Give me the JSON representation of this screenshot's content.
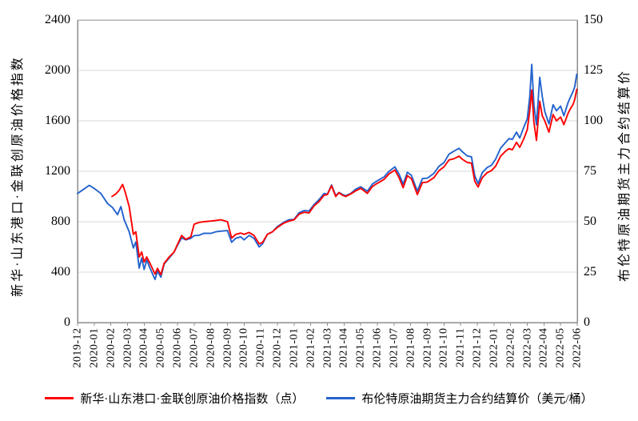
{
  "chart_data": {
    "type": "line",
    "title": "",
    "grid": true,
    "legend_position": "bottom",
    "x_axis": {
      "tick_labels": [
        "2019-12",
        "2020-01",
        "2020-02",
        "2020-03",
        "2020-04",
        "2020-05",
        "2020-06",
        "2020-07",
        "2020-08",
        "2020-09",
        "2020-10",
        "2020-11",
        "2020-12",
        "2021-01",
        "2021-02",
        "2021-03",
        "2021-04",
        "2021-05",
        "2021-06",
        "2021-07",
        "2021-08",
        "2021-09",
        "2021-10",
        "2021-11",
        "2021-12",
        "2022-01",
        "2022-02",
        "2022-03",
        "2022-04",
        "2022-05",
        "2022-06"
      ],
      "note": "series point x values are fractional month offsets: 0 = 2019-12 tick, 30 = 2022-06 tick"
    },
    "left_axis": {
      "title": "新华·山东港口·金联创原油价格指数",
      "ticks": [
        0,
        400,
        800,
        1200,
        1600,
        2000,
        2400
      ],
      "range": [
        0,
        2400
      ]
    },
    "right_axis": {
      "title": "布伦特原油期货主力合约结算价",
      "ticks": [
        0,
        25,
        50,
        75,
        100,
        125,
        150
      ],
      "range": [
        0,
        150
      ]
    },
    "colors": {
      "index_red": "#fe0000",
      "brent_blue": "#2363ce",
      "gridline": "#d9d9d9",
      "axis_line": "#8c8c8c"
    },
    "series": [
      {
        "name": "新华·山东港口·金联创原油价格指数（点）",
        "axis": "left",
        "unit": "点",
        "color": "#fe0000",
        "points": [
          [
            2.07,
            1000
          ],
          [
            2.3,
            1020
          ],
          [
            2.5,
            1050
          ],
          [
            2.7,
            1095
          ],
          [
            2.85,
            1040
          ],
          [
            3.1,
            920
          ],
          [
            3.35,
            700
          ],
          [
            3.5,
            720
          ],
          [
            3.7,
            520
          ],
          [
            3.85,
            560
          ],
          [
            4.0,
            480
          ],
          [
            4.15,
            520
          ],
          [
            4.35,
            470
          ],
          [
            4.65,
            385
          ],
          [
            4.8,
            430
          ],
          [
            5.0,
            380
          ],
          [
            5.2,
            470
          ],
          [
            5.5,
            520
          ],
          [
            5.8,
            560
          ],
          [
            6.0,
            620
          ],
          [
            6.25,
            690
          ],
          [
            6.5,
            660
          ],
          [
            6.8,
            680
          ],
          [
            7.0,
            780
          ],
          [
            7.3,
            795
          ],
          [
            7.6,
            800
          ],
          [
            8.0,
            805
          ],
          [
            8.3,
            810
          ],
          [
            8.6,
            815
          ],
          [
            9.0,
            800
          ],
          [
            9.25,
            670
          ],
          [
            9.5,
            700
          ],
          [
            9.8,
            710
          ],
          [
            10.0,
            700
          ],
          [
            10.3,
            715
          ],
          [
            10.6,
            690
          ],
          [
            10.9,
            625
          ],
          [
            11.1,
            635
          ],
          [
            11.4,
            700
          ],
          [
            11.7,
            720
          ],
          [
            12.0,
            755
          ],
          [
            12.4,
            790
          ],
          [
            12.7,
            805
          ],
          [
            13.0,
            815
          ],
          [
            13.3,
            860
          ],
          [
            13.6,
            875
          ],
          [
            13.9,
            870
          ],
          [
            14.2,
            925
          ],
          [
            14.5,
            960
          ],
          [
            14.8,
            1010
          ],
          [
            15.0,
            1015
          ],
          [
            15.25,
            1085
          ],
          [
            15.5,
            1000
          ],
          [
            15.7,
            1030
          ],
          [
            15.9,
            1010
          ],
          [
            16.1,
            1000
          ],
          [
            16.4,
            1020
          ],
          [
            16.7,
            1045
          ],
          [
            17.0,
            1065
          ],
          [
            17.4,
            1025
          ],
          [
            17.7,
            1080
          ],
          [
            18.0,
            1105
          ],
          [
            18.4,
            1135
          ],
          [
            18.7,
            1180
          ],
          [
            19.05,
            1210
          ],
          [
            19.3,
            1150
          ],
          [
            19.55,
            1070
          ],
          [
            19.8,
            1165
          ],
          [
            20.05,
            1140
          ],
          [
            20.4,
            1015
          ],
          [
            20.7,
            1110
          ],
          [
            21.0,
            1115
          ],
          [
            21.4,
            1150
          ],
          [
            21.7,
            1205
          ],
          [
            22.0,
            1235
          ],
          [
            22.3,
            1290
          ],
          [
            22.6,
            1300
          ],
          [
            22.9,
            1320
          ],
          [
            23.1,
            1295
          ],
          [
            23.4,
            1270
          ],
          [
            23.65,
            1265
          ],
          [
            23.85,
            1120
          ],
          [
            24.05,
            1075
          ],
          [
            24.3,
            1150
          ],
          [
            24.6,
            1190
          ],
          [
            24.85,
            1205
          ],
          [
            25.1,
            1240
          ],
          [
            25.4,
            1320
          ],
          [
            25.7,
            1360
          ],
          [
            25.9,
            1380
          ],
          [
            26.1,
            1370
          ],
          [
            26.35,
            1430
          ],
          [
            26.55,
            1390
          ],
          [
            26.8,
            1460
          ],
          [
            27.0,
            1530
          ],
          [
            27.15,
            1680
          ],
          [
            27.27,
            1845
          ],
          [
            27.4,
            1590
          ],
          [
            27.55,
            1445
          ],
          [
            27.75,
            1755
          ],
          [
            27.9,
            1640
          ],
          [
            28.05,
            1600
          ],
          [
            28.3,
            1510
          ],
          [
            28.55,
            1650
          ],
          [
            28.75,
            1600
          ],
          [
            29.0,
            1630
          ],
          [
            29.2,
            1570
          ],
          [
            29.45,
            1660
          ],
          [
            29.6,
            1700
          ],
          [
            29.75,
            1730
          ],
          [
            29.85,
            1770
          ],
          [
            29.97,
            1850
          ]
        ]
      },
      {
        "name": "布伦特原油期货主力合约结算价（美元/桶）",
        "axis": "right",
        "unit": "美元/桶",
        "color": "#2363ce",
        "points": [
          [
            0,
            64
          ],
          [
            0.35,
            66
          ],
          [
            0.7,
            68
          ],
          [
            1.0,
            66.5
          ],
          [
            1.4,
            64
          ],
          [
            1.8,
            59
          ],
          [
            2.1,
            57
          ],
          [
            2.4,
            53.5
          ],
          [
            2.6,
            57.5
          ],
          [
            2.8,
            51
          ],
          [
            3.1,
            45
          ],
          [
            3.35,
            37
          ],
          [
            3.5,
            40
          ],
          [
            3.7,
            27
          ],
          [
            3.85,
            32
          ],
          [
            4.0,
            26.4
          ],
          [
            4.15,
            31
          ],
          [
            4.35,
            27
          ],
          [
            4.65,
            21.4
          ],
          [
            4.8,
            25.5
          ],
          [
            5.0,
            22.5
          ],
          [
            5.2,
            29
          ],
          [
            5.5,
            32
          ],
          [
            5.8,
            35
          ],
          [
            6.0,
            38.3
          ],
          [
            6.25,
            42
          ],
          [
            6.5,
            41
          ],
          [
            6.8,
            41.8
          ],
          [
            7.0,
            43.1
          ],
          [
            7.3,
            43.3
          ],
          [
            7.6,
            44.3
          ],
          [
            8.0,
            44.2
          ],
          [
            8.3,
            45
          ],
          [
            8.6,
            45.3
          ],
          [
            9.0,
            45.6
          ],
          [
            9.25,
            39.8
          ],
          [
            9.5,
            41.8
          ],
          [
            9.8,
            42.5
          ],
          [
            10.0,
            41
          ],
          [
            10.3,
            43.2
          ],
          [
            10.6,
            41.7
          ],
          [
            10.9,
            37.5
          ],
          [
            11.1,
            39
          ],
          [
            11.4,
            43.8
          ],
          [
            11.7,
            45
          ],
          [
            12.0,
            47.6
          ],
          [
            12.4,
            49.8
          ],
          [
            12.7,
            51
          ],
          [
            13.0,
            51.1
          ],
          [
            13.3,
            54.5
          ],
          [
            13.6,
            55.5
          ],
          [
            13.9,
            55.3
          ],
          [
            14.2,
            58.5
          ],
          [
            14.5,
            61
          ],
          [
            14.8,
            64
          ],
          [
            15.0,
            63.7
          ],
          [
            15.25,
            68.2
          ],
          [
            15.5,
            63
          ],
          [
            15.7,
            64.5
          ],
          [
            15.9,
            63.5
          ],
          [
            16.1,
            62.9
          ],
          [
            16.4,
            64
          ],
          [
            16.7,
            66.1
          ],
          [
            17.0,
            67.3
          ],
          [
            17.4,
            65.1
          ],
          [
            17.7,
            68.7
          ],
          [
            18.0,
            70.3
          ],
          [
            18.4,
            72.2
          ],
          [
            18.7,
            75
          ],
          [
            19.05,
            77.2
          ],
          [
            19.3,
            73.6
          ],
          [
            19.55,
            68.6
          ],
          [
            19.8,
            74.5
          ],
          [
            20.05,
            72.9
          ],
          [
            20.4,
            65.2
          ],
          [
            20.7,
            71.4
          ],
          [
            21.0,
            71.6
          ],
          [
            21.4,
            74
          ],
          [
            21.7,
            77.5
          ],
          [
            22.0,
            79.3
          ],
          [
            22.3,
            83.5
          ],
          [
            22.6,
            85
          ],
          [
            22.9,
            86.4
          ],
          [
            23.1,
            84.7
          ],
          [
            23.4,
            82.6
          ],
          [
            23.65,
            82.2
          ],
          [
            23.85,
            72.7
          ],
          [
            24.05,
            68.9
          ],
          [
            24.3,
            74.4
          ],
          [
            24.6,
            76.9
          ],
          [
            24.85,
            78
          ],
          [
            25.1,
            81
          ],
          [
            25.4,
            86.5
          ],
          [
            25.7,
            89.3
          ],
          [
            25.9,
            91.2
          ],
          [
            26.1,
            90.8
          ],
          [
            26.35,
            94.4
          ],
          [
            26.55,
            91.5
          ],
          [
            26.8,
            97
          ],
          [
            27.0,
            101
          ],
          [
            27.15,
            112
          ],
          [
            27.27,
            128
          ],
          [
            27.4,
            108
          ],
          [
            27.55,
            98
          ],
          [
            27.75,
            121.6
          ],
          [
            27.9,
            112
          ],
          [
            28.05,
            104.7
          ],
          [
            28.3,
            98.5
          ],
          [
            28.55,
            108
          ],
          [
            28.75,
            105
          ],
          [
            29.0,
            107.3
          ],
          [
            29.2,
            102.5
          ],
          [
            29.45,
            109
          ],
          [
            29.6,
            112
          ],
          [
            29.75,
            114.6
          ],
          [
            29.85,
            117
          ],
          [
            29.97,
            123.1
          ]
        ]
      }
    ]
  }
}
